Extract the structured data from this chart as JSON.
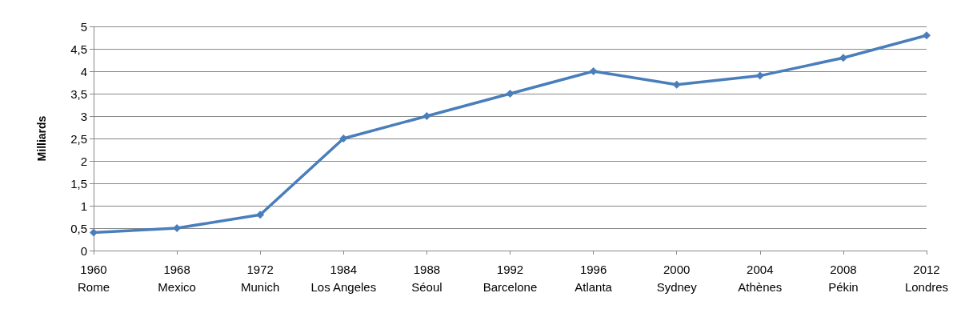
{
  "chart_data": {
    "type": "line",
    "ylabel": "Milliards",
    "categories": [
      "1960\nRome",
      "1968\nMexico",
      "1972\nMunich",
      "1984\nLos Angeles",
      "1988\nSéoul",
      "1992\nBarcelone",
      "1996\nAtlanta",
      "2000\nSydney",
      "2004\nAthènes",
      "2008\nPékin",
      "2012\nLondres"
    ],
    "series": [
      {
        "color": "#4a7ebb",
        "values": [
          0.4,
          0.5,
          0.8,
          2.5,
          3.0,
          3.5,
          4.0,
          3.7,
          3.9,
          4.3,
          4.8
        ]
      }
    ],
    "ylim": [
      0,
      5
    ],
    "yticks": [
      0,
      {
        "value": 0.5,
        "label": "0,5"
      },
      1,
      {
        "value": 1.5,
        "label": "1,5"
      },
      2,
      {
        "value": 2.5,
        "label": "2,5"
      },
      3,
      {
        "value": 3.5,
        "label": "3,5"
      },
      4,
      {
        "value": 4.5,
        "label": "4,5"
      },
      5
    ],
    "grid": "y",
    "marker": "diamond",
    "line_style": "solid"
  }
}
